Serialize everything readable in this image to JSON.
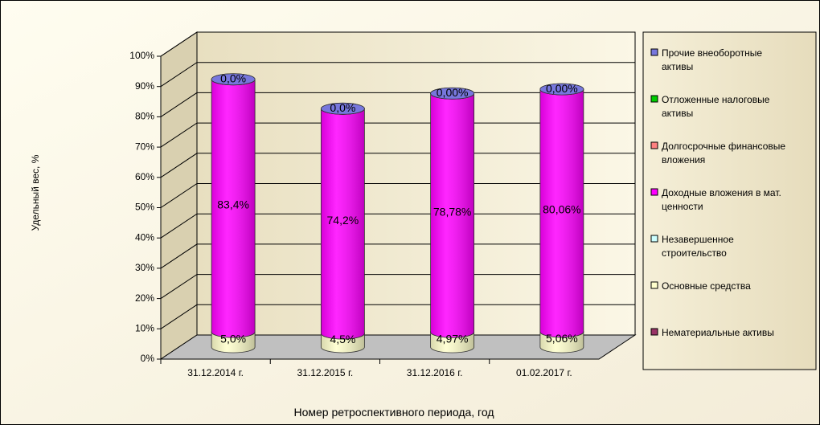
{
  "chart_data": {
    "type": "stacked-cylinder",
    "x_label": "Номер ретроспективного периода, год",
    "y_label": "Удельный вес, %",
    "categories": [
      "31.12.2014 г.",
      "31.12.2015 г.",
      "31.12.2016 г.",
      "01.02.2017 г."
    ],
    "ylim": [
      0,
      100
    ],
    "yticks": [
      {
        "value": 0,
        "label": "0%"
      },
      {
        "value": 10,
        "label": "10%"
      },
      {
        "value": 20,
        "label": "20%"
      },
      {
        "value": 30,
        "label": "30%"
      },
      {
        "value": 40,
        "label": "40%"
      },
      {
        "value": 50,
        "label": "50%"
      },
      {
        "value": 60,
        "label": "60%"
      },
      {
        "value": 70,
        "label": "70%"
      },
      {
        "value": 80,
        "label": "80%"
      },
      {
        "value": 90,
        "label": "90%"
      },
      {
        "value": 100,
        "label": "100%"
      }
    ],
    "grid": true,
    "legend": "right",
    "series": [
      {
        "name": "Нематериальные активы",
        "color": "#993366",
        "values": [
          null,
          null,
          null,
          null
        ]
      },
      {
        "name": "Основные средства",
        "color": "#ffffcc",
        "values": [
          5.0,
          4.5,
          4.97,
          5.06
        ],
        "value_labels": [
          "5,0%",
          "4,5%",
          "4,97%",
          "5,06%"
        ]
      },
      {
        "name": "Незавершенное строительство",
        "color": "#ccffff",
        "values": [
          null,
          null,
          null,
          null
        ]
      },
      {
        "name": "Доходные вложения в мат. ценности",
        "color": "#ff00ff",
        "values": [
          83.4,
          74.2,
          78.78,
          80.06
        ],
        "value_labels": [
          "83,4%",
          "74,2%",
          "78,78%",
          "80,06%"
        ]
      },
      {
        "name": "Долгосрочные финансовые вложения",
        "color": "#ff8080",
        "values": [
          null,
          null,
          null,
          null
        ]
      },
      {
        "name": "Отложенные налоговые активы",
        "color": "#00cc00",
        "values": [
          null,
          null,
          null,
          null
        ]
      },
      {
        "name": "Прочие внеоборотные активы",
        "color": "#7777dd",
        "values": [
          0,
          0,
          0,
          0
        ],
        "value_labels": [
          "0,0%",
          "0,0%",
          "0,00%",
          "0,00%"
        ]
      }
    ]
  }
}
